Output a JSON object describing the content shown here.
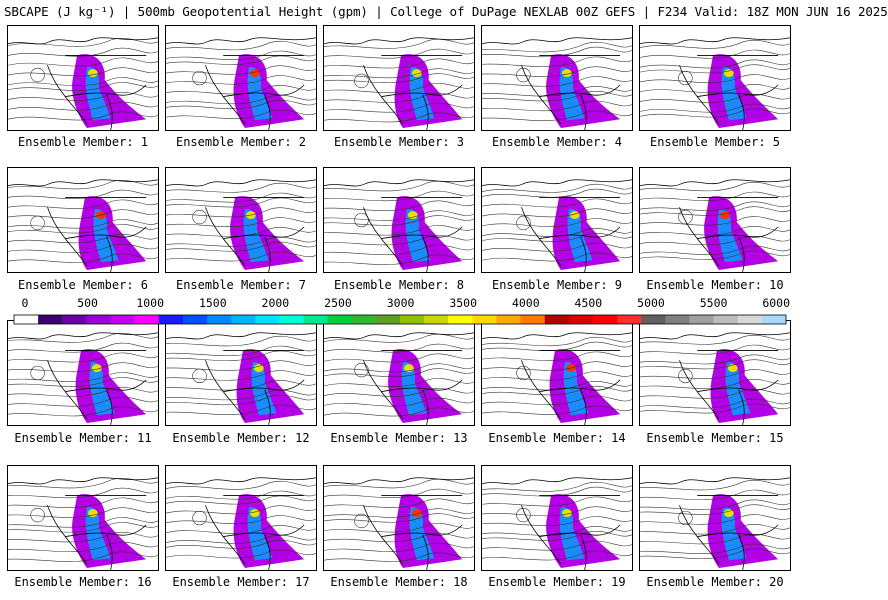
{
  "title": "SBCAPE (J kg⁻¹) | 500mb Geopotential Height (gpm) | College of DuPage NEXLAB 00Z GEFS | F234 Valid: 18Z MON JUN 16 2025",
  "members": [
    "Ensemble Member: 1",
    "Ensemble Member: 2",
    "Ensemble Member: 3",
    "Ensemble Member: 4",
    "Ensemble Member: 5",
    "Ensemble Member: 6",
    "Ensemble Member: 7",
    "Ensemble Member: 8",
    "Ensemble Member: 9",
    "Ensemble Member: 10",
    "Ensemble Member: 11",
    "Ensemble Member: 12",
    "Ensemble Member: 13",
    "Ensemble Member: 14",
    "Ensemble Member: 15",
    "Ensemble Member: 16",
    "Ensemble Member: 17",
    "Ensemble Member: 18",
    "Ensemble Member: 19",
    "Ensemble Member: 20"
  ],
  "colorbar": {
    "ticks": [
      "0",
      "500",
      "1000",
      "1500",
      "2000",
      "2500",
      "3000",
      "3500",
      "4000",
      "4500",
      "5000",
      "5500",
      "6000"
    ],
    "colors": [
      "#ffffff",
      "#3a0070",
      "#6a00a8",
      "#9b00d6",
      "#c400f0",
      "#ff00ff",
      "#1a1aff",
      "#0050ff",
      "#0088ff",
      "#00b4ff",
      "#00e0ff",
      "#00ffd8",
      "#00e890",
      "#00d040",
      "#30b830",
      "#60a020",
      "#90c000",
      "#c8d800",
      "#ffff00",
      "#ffd800",
      "#ffa800",
      "#ff7800",
      "#b00000",
      "#d80000",
      "#ff0000",
      "#ff3030",
      "#606060",
      "#808080",
      "#a0a0a0",
      "#bcbcbc",
      "#d8d8d8",
      "#a8d8ff"
    ]
  }
}
